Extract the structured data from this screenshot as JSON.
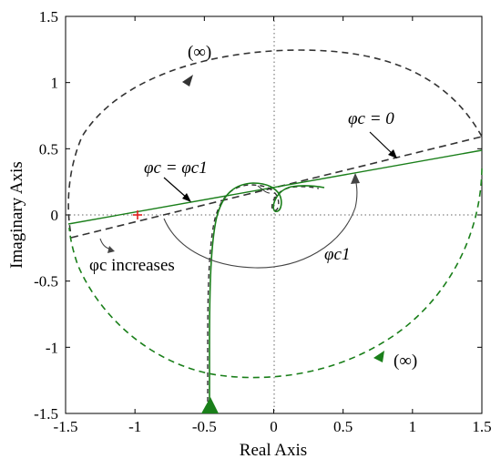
{
  "chart_data": {
    "type": "line",
    "title": "",
    "xlabel": "Real Axis",
    "ylabel": "Imaginary Axis",
    "xlim": [
      -1.5,
      1.5
    ],
    "ylim": [
      -1.5,
      1.5
    ],
    "xticks": [
      "-1.5",
      "-1",
      "-0.5",
      "0",
      "0.5",
      "1",
      "1.5"
    ],
    "yticks": [
      "1.5",
      "1",
      "0.5",
      "0",
      "-0.5",
      "-1",
      "-1.5"
    ],
    "grid": false,
    "legend": "none",
    "critical_point": {
      "x": -1,
      "y": 0,
      "color": "#e02020"
    },
    "colors": {
      "black_dashed": "#333333",
      "green": "#1a7f1a",
      "arc": "#444444"
    },
    "series": [
      {
        "style": "black-dashed",
        "description_points": "infinity semicircle (upper) and line at phi_c = 0",
        "x": [
          1.5,
          1.3,
          1.0,
          0.5,
          0.0,
          -0.5,
          -1.0,
          -1.3,
          -1.48,
          -1.5
        ],
        "y": [
          0.55,
          0.95,
          1.15,
          1.22,
          1.18,
          1.05,
          0.78,
          0.45,
          0.0,
          -0.17
        ]
      },
      {
        "style": "black-dashed-line",
        "x": [
          -1.5,
          1.5
        ],
        "y": [
          -0.17,
          0.55
        ]
      },
      {
        "style": "green-solid-line",
        "x": [
          -1.5,
          1.5
        ],
        "y": [
          -0.1,
          0.47
        ]
      },
      {
        "style": "green-dashed",
        "x": [
          1.5,
          1.45,
          1.2,
          0.8,
          0.3,
          -0.2,
          -0.7,
          -1.1,
          -1.4,
          -1.5
        ],
        "y": [
          0.3,
          -0.1,
          -0.55,
          -1.0,
          -1.25,
          -1.27,
          -1.1,
          -0.75,
          -0.35,
          -0.1
        ]
      },
      {
        "style": "green-solid-curve",
        "x": [
          -0.48,
          -0.48,
          -0.47,
          -0.45,
          -0.42,
          -0.37,
          -0.3,
          -0.2,
          -0.1,
          -0.02,
          0.03,
          0.05,
          0.03,
          0.0,
          0.05,
          0.15
        ],
        "y": [
          -1.47,
          -1.2,
          -0.8,
          -0.4,
          -0.1,
          0.1,
          0.16,
          0.18,
          0.19,
          0.17,
          0.1,
          0.02,
          -0.02,
          0.02,
          0.15,
          0.2
        ]
      }
    ],
    "annotations": {
      "inf_top": "(∞)",
      "inf_bottom": "(∞)",
      "phi_c_zero": "φc = 0",
      "phi_c_phi_c1": "φc = φc1",
      "phi_c_increases": "φc increases",
      "phi_c1": "φc1"
    }
  }
}
